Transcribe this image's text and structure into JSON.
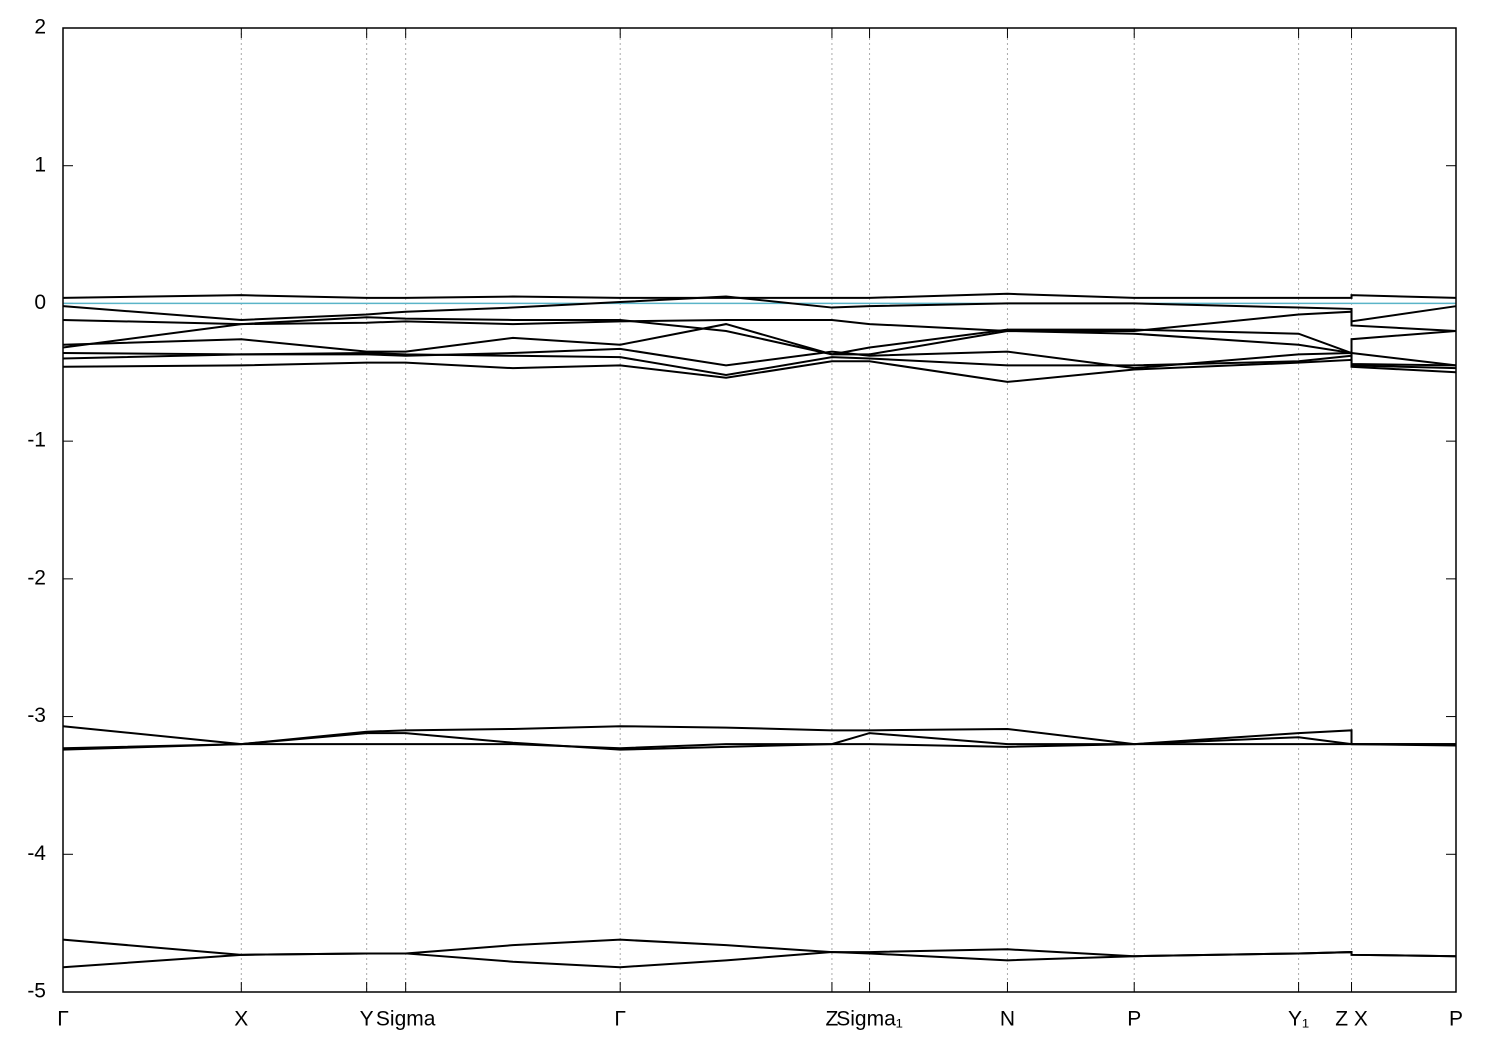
{
  "chart_data": {
    "type": "line",
    "x": [
      0,
      0.128,
      0.218,
      0.246,
      0.323,
      0.4,
      0.476,
      0.552,
      0.579,
      0.678,
      0.769,
      0.887,
      0.925,
      0.925,
      1.0
    ],
    "xlim": [
      0,
      1.0
    ],
    "xticks": [
      {
        "value": 0,
        "label": "Γ"
      },
      {
        "value": 0.128,
        "label": "X"
      },
      {
        "value": 0.218,
        "label": "Y"
      },
      {
        "value": 0.246,
        "label": "Sigma"
      },
      {
        "value": 0.4,
        "label": "Γ"
      },
      {
        "value": 0.552,
        "label": "Z"
      },
      {
        "value": 0.579,
        "label": "Sigma₁"
      },
      {
        "value": 0.678,
        "label": "N"
      },
      {
        "value": 0.769,
        "label": "P"
      },
      {
        "value": 0.887,
        "label": "Y₁"
      },
      {
        "value": 0.925,
        "label": "Z  X"
      },
      {
        "value": 1.0,
        "label": "P"
      }
    ],
    "ylim": [
      -5,
      2
    ],
    "yticks": [
      -5,
      -4,
      -3,
      -2,
      -1,
      0,
      1,
      2
    ],
    "xgrid": true,
    "fermi_level": 0,
    "fermi_color": "#5ab4c8",
    "series": [
      {
        "color": "#000000",
        "values": [
          0.04,
          0.06,
          0.04,
          0.04,
          0.05,
          0.04,
          0.04,
          0.04,
          0.04,
          0.07,
          0.04,
          0.04,
          0.04,
          0.06,
          0.04
        ]
      },
      {
        "color": "#000000",
        "values": [
          -0.02,
          -0.12,
          -0.08,
          -0.06,
          -0.03,
          0.01,
          0.05,
          -0.03,
          -0.02,
          0.0,
          0.0,
          -0.03,
          -0.04,
          -0.13,
          -0.02
        ]
      },
      {
        "color": "#000000",
        "values": [
          -0.12,
          -0.15,
          -0.14,
          -0.13,
          -0.15,
          -0.13,
          -0.12,
          -0.12,
          -0.15,
          -0.2,
          -0.2,
          -0.08,
          -0.06,
          -0.16,
          -0.2
        ]
      },
      {
        "color": "#000000",
        "values": [
          -0.32,
          -0.15,
          -0.1,
          -0.11,
          -0.12,
          -0.12,
          -0.2,
          -0.37,
          -0.37,
          -0.2,
          -0.22,
          -0.3,
          -0.36,
          -0.26,
          -0.2
        ]
      },
      {
        "color": "#000000",
        "values": [
          -0.3,
          -0.26,
          -0.35,
          -0.35,
          -0.25,
          -0.3,
          -0.15,
          -0.37,
          -0.32,
          -0.19,
          -0.19,
          -0.22,
          -0.36,
          -0.36,
          -0.45
        ]
      },
      {
        "color": "#000000",
        "values": [
          -0.36,
          -0.37,
          -0.37,
          -0.38,
          -0.36,
          -0.33,
          -0.45,
          -0.35,
          -0.38,
          -0.35,
          -0.47,
          -0.37,
          -0.36,
          -0.44,
          -0.45
        ]
      },
      {
        "color": "#000000",
        "values": [
          -0.4,
          -0.37,
          -0.36,
          -0.37,
          -0.38,
          -0.39,
          -0.52,
          -0.39,
          -0.4,
          -0.45,
          -0.45,
          -0.42,
          -0.38,
          -0.45,
          -0.47
        ]
      },
      {
        "color": "#000000",
        "values": [
          -0.46,
          -0.45,
          -0.43,
          -0.43,
          -0.47,
          -0.45,
          -0.54,
          -0.42,
          -0.42,
          -0.57,
          -0.48,
          -0.43,
          -0.41,
          -0.46,
          -0.5
        ]
      },
      {
        "color": "#000000",
        "values": [
          -3.07,
          -3.2,
          -3.11,
          -3.1,
          -3.09,
          -3.07,
          -3.08,
          -3.1,
          -3.1,
          -3.09,
          -3.2,
          -3.12,
          -3.1,
          -3.2,
          -3.2
        ]
      },
      {
        "color": "#000000",
        "values": [
          -3.24,
          -3.2,
          -3.12,
          -3.12,
          -3.19,
          -3.24,
          -3.22,
          -3.2,
          -3.12,
          -3.2,
          -3.2,
          -3.15,
          -3.2,
          -3.2,
          -3.21
        ]
      },
      {
        "color": "#000000",
        "values": [
          -3.23,
          -3.2,
          -3.2,
          -3.2,
          -3.2,
          -3.23,
          -3.2,
          -3.2,
          -3.2,
          -3.22,
          -3.2,
          -3.2,
          -3.2,
          -3.2,
          -3.2
        ]
      },
      {
        "color": "#000000",
        "values": [
          -4.62,
          -4.73,
          -4.72,
          -4.72,
          -4.66,
          -4.62,
          -4.66,
          -4.71,
          -4.71,
          -4.69,
          -4.74,
          -4.72,
          -4.71,
          -4.73,
          -4.74
        ]
      },
      {
        "color": "#000000",
        "values": [
          -4.82,
          -4.73,
          -4.72,
          -4.72,
          -4.78,
          -4.82,
          -4.77,
          -4.71,
          -4.72,
          -4.77,
          -4.74,
          -4.72,
          -4.71,
          -4.73,
          -4.74
        ]
      }
    ]
  }
}
